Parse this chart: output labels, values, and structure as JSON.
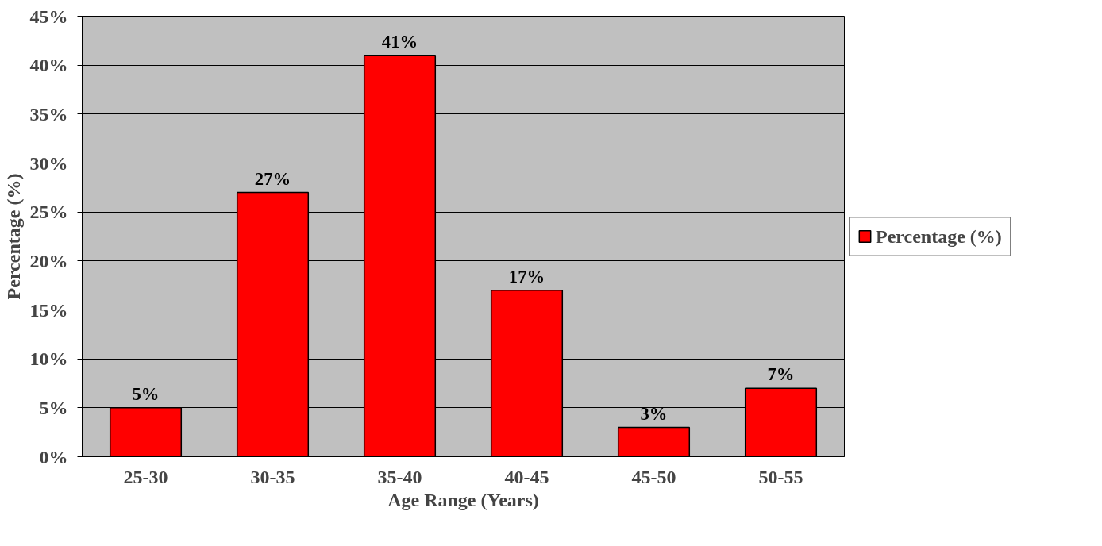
{
  "chart_data": {
    "type": "bar",
    "xlabel": "Age Range (Years)",
    "ylabel": "Percentage (%)",
    "categories": [
      "25-30",
      "30-35",
      "35-40",
      "40-45",
      "45-50",
      "50-55"
    ],
    "series": [
      {
        "name": "Percentage (%)",
        "color": "#ff0000",
        "values": [
          5,
          27,
          41,
          17,
          3,
          7
        ]
      }
    ],
    "value_labels": [
      "5%",
      "27%",
      "41%",
      "17%",
      "3%",
      "7%"
    ],
    "ylim": [
      0,
      45
    ],
    "yticks": [
      {
        "value": 0,
        "label": "0%"
      },
      {
        "value": 5,
        "label": "5%"
      },
      {
        "value": 10,
        "label": "10%"
      },
      {
        "value": 15,
        "label": "15%"
      },
      {
        "value": 20,
        "label": "20%"
      },
      {
        "value": 25,
        "label": "25%"
      },
      {
        "value": 30,
        "label": "30%"
      },
      {
        "value": 35,
        "label": "35%"
      },
      {
        "value": 40,
        "label": "40%"
      },
      {
        "value": 45,
        "label": "45%"
      }
    ],
    "grid": "y",
    "legend": "right"
  }
}
